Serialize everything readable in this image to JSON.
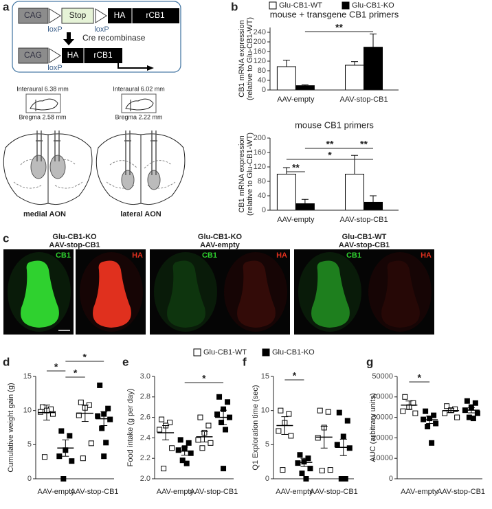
{
  "panel_a": {
    "label": "a",
    "construct_top": [
      "CAG",
      "Stop",
      "HA",
      "rCB1"
    ],
    "loxp_top": [
      "loxP",
      "loxP"
    ],
    "arrow_label": "Cre recombinase",
    "construct_bottom": [
      "CAG",
      "HA",
      "rCB1"
    ],
    "loxp_bottom": "loxP",
    "sections": [
      {
        "interaural": "Interaural 6.38 mm",
        "bregma": "Bregma 2.58 mm",
        "name": "medial AON"
      },
      {
        "interaural": "Interaural 6.02 mm",
        "bregma": "Bregma 2.22 mm",
        "name": "lateral AON"
      }
    ]
  },
  "panel_c": {
    "label": "c",
    "images": [
      {
        "genotype": "Glu-CB1-KO",
        "virus": "AAV-stop-CB1",
        "channels": [
          "CB1",
          "HA"
        ]
      },
      {
        "genotype": "Glu-CB1-KO",
        "virus": "AAV-empty",
        "channels": [
          "CB1",
          "HA"
        ]
      },
      {
        "genotype": "Glu-CB1-WT",
        "virus": "AAV-stop-CB1",
        "channels": [
          "CB1",
          "HA"
        ]
      }
    ]
  },
  "chart_data": [
    {
      "type": "bar",
      "panel_label": "b",
      "title": "mouse + transgene CB1 primers",
      "y_label": [
        "CB1 mRNA expression",
        "(relative to Glu-CB1-WT)"
      ],
      "categories": [
        "AAV-empty",
        "AAV-stop-CB1"
      ],
      "series": [
        {
          "name": "Glu-CB1-WT",
          "color": "#ffffff",
          "values": [
            97,
            103
          ],
          "errors": [
            27,
            15
          ]
        },
        {
          "name": "Glu-CB1-KO",
          "color": "#000000",
          "values": [
            18,
            178
          ],
          "errors": [
            3,
            55
          ]
        }
      ],
      "ylim": [
        0,
        260
      ],
      "yticks": [
        0,
        40,
        80,
        120,
        160,
        200,
        240
      ],
      "significance": [
        "**"
      ]
    },
    {
      "type": "bar",
      "title": "mouse CB1 primers",
      "y_label": [
        "CB1 mRNA expression",
        "(relative to Glu-CB1-WT)"
      ],
      "categories": [
        "AAV-empty",
        "AAV-stop-CB1"
      ],
      "series": [
        {
          "color": "#ffffff",
          "values": [
            100,
            100
          ],
          "errors": [
            18,
            52
          ]
        },
        {
          "color": "#000000",
          "values": [
            18,
            22
          ],
          "errors": [
            12,
            18
          ]
        }
      ],
      "ylim": [
        0,
        200
      ],
      "yticks": [
        0,
        40,
        80,
        120,
        160,
        200
      ],
      "significance": [
        "**",
        "**",
        "**",
        "*"
      ]
    },
    {
      "type": "dot",
      "panel_label": "d",
      "y_label": "Cumulative weight gain (g)",
      "categories": [
        "AAV-empty",
        "AAV-stop-CB1"
      ],
      "series": [
        {
          "name": "Glu-CB1-WT",
          "color": "#ffffff",
          "points": [
            [
              10.5,
              10.2,
              10.0,
              9.8,
              9.5,
              3.2
            ],
            [
              11.2,
              10.8,
              10.4,
              9.3,
              5.2,
              3.0
            ]
          ],
          "means": [
            9.7,
            9.6
          ],
          "errors": [
            1.1,
            1.2
          ]
        },
        {
          "name": "Glu-CB1-KO",
          "color": "#000000",
          "points": [
            [
              7.0,
              6.3,
              4.2,
              3.3,
              2.6,
              0.0
            ],
            [
              13.7,
              10.3,
              9.5,
              9.2,
              8.7,
              7.4,
              5.3,
              3.3
            ]
          ],
          "means": [
            4.5,
            8.8
          ],
          "errors": [
            1.2,
            1.0
          ]
        }
      ],
      "ylim": [
        0,
        15
      ],
      "yticks": [
        0,
        5,
        10,
        15
      ],
      "significance": [
        "*",
        "*",
        "*"
      ]
    },
    {
      "type": "dot",
      "panel_label": "e",
      "y_label": "Food intake (g per day)",
      "categories": [
        "AAV-empty",
        "AAV-stop-CB1"
      ],
      "series": [
        {
          "color": "#ffffff",
          "points": [
            [
              2.58,
              2.55,
              2.52,
              2.48,
              2.3,
              2.1
            ],
            [
              2.6,
              2.52,
              2.45,
              2.38,
              2.35,
              2.3
            ]
          ],
          "means": [
            2.45,
            2.41
          ],
          "errors": [
            0.07,
            0.05
          ]
        },
        {
          "color": "#000000",
          "points": [
            [
              2.38,
              2.35,
              2.3,
              2.28,
              2.25,
              2.18,
              2.15
            ],
            [
              2.8,
              2.75,
              2.68,
              2.63,
              2.6,
              2.55,
              2.48,
              2.1
            ]
          ],
          "means": [
            2.27,
            2.6
          ],
          "errors": [
            0.04,
            0.07
          ]
        }
      ],
      "ylim": [
        2,
        3
      ],
      "yticks": [
        {
          "value": 2,
          "label": "2.0"
        },
        2.2,
        2.4,
        2.6,
        2.8,
        {
          "value": 3,
          "label": "3.0"
        }
      ],
      "significance": [
        "*"
      ]
    },
    {
      "type": "dot",
      "panel_label": "f",
      "y_label": "Q1 Exploration time (sec)",
      "categories": [
        "AAV-empty",
        "AAV-stop-CB1"
      ],
      "series": [
        {
          "color": "#ffffff",
          "points": [
            [
              10.0,
              9.5,
              8.2,
              7.0,
              6.3,
              1.3
            ],
            [
              10.0,
              9.8,
              7.5,
              6.0,
              1.3,
              1.2
            ]
          ],
          "means": [
            7.8,
            6.1
          ],
          "errors": [
            1.3,
            1.6
          ]
        },
        {
          "color": "#000000",
          "points": [
            [
              3.5,
              3.0,
              2.5,
              2.3,
              1.5,
              0.8,
              0.0
            ],
            [
              9.7,
              8.5,
              6.2,
              5.0,
              4.5,
              0.0,
              0.0
            ]
          ],
          "means": [
            2.4,
            4.6
          ],
          "errors": [
            0.6,
            1.2
          ]
        }
      ],
      "ylim": [
        0,
        15
      ],
      "yticks": [
        0,
        5,
        10,
        15
      ],
      "significance": [
        "*"
      ]
    },
    {
      "type": "dot",
      "panel_label": "g",
      "y_label": "AUC (arbitrary units)",
      "categories": [
        "AAV-empty",
        "AAV-stop-CB1"
      ],
      "series": [
        {
          "color": "#ffffff",
          "points": [
            [
              40000,
              37000,
              35000,
              33000,
              32000
            ],
            [
              35500,
              34000,
              33500,
              32000,
              30000
            ]
          ],
          "means": [
            36000,
            33300
          ],
          "errors": [
            2000,
            1000
          ]
        },
        {
          "color": "#000000",
          "points": [
            [
              33000,
              31000,
              29500,
              29000,
              27000,
              25500,
              17500
            ],
            [
              38000,
              37000,
              35000,
              33500,
              32000,
              30000,
              29500
            ]
          ],
          "means": [
            28800,
            33500
          ],
          "errors": [
            1800,
            1300
          ]
        }
      ],
      "ylim": [
        0,
        50000
      ],
      "yticks": [
        0,
        10000,
        20000,
        30000,
        40000,
        50000
      ],
      "significance": [
        "*"
      ]
    }
  ]
}
